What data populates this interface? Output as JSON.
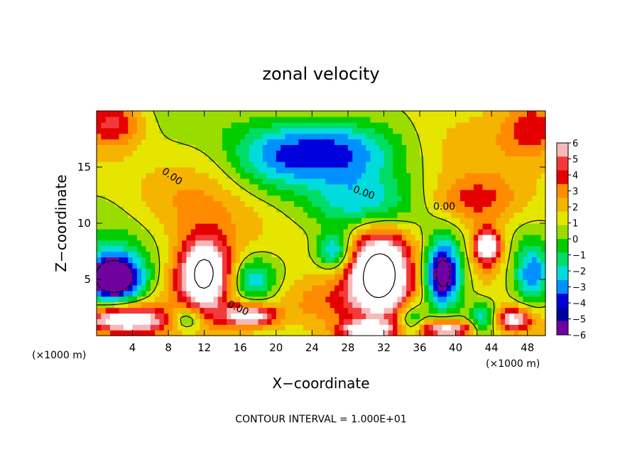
{
  "chart_data": {
    "type": "heatmap",
    "title": "zonal velocity",
    "xlabel": "X−coordinate",
    "ylabel": "Z−coordinate",
    "x_unit_left": "(×1000 m)",
    "x_unit_right": "(×1000 m)",
    "footer": "CONTOUR INTERVAL = 1.000E+01",
    "xlim": [
      0,
      50
    ],
    "ylim": [
      0,
      20
    ],
    "x_ticks": [
      4,
      8,
      12,
      16,
      20,
      24,
      28,
      32,
      36,
      40,
      44,
      48
    ],
    "x_tick_labels": [
      "4",
      "8",
      "12",
      "16",
      "20",
      "24",
      "28",
      "32",
      "36",
      "40",
      "44",
      "48"
    ],
    "y_ticks": [
      5,
      10,
      15
    ],
    "y_tick_labels": [
      "5",
      "10",
      "15"
    ],
    "colorbar": {
      "min": -6,
      "max": 6,
      "ticks": [
        6,
        5,
        4,
        3,
        2,
        1,
        0,
        -1,
        -2,
        -3,
        -4,
        -5,
        -6
      ],
      "tick_labels": [
        "6",
        "5",
        "4",
        "3",
        "2",
        "1",
        "0",
        "−1",
        "−2",
        "−3",
        "−4",
        "−5",
        "−6"
      ],
      "colors": [
        "#f6b9b9",
        "#f23a3a",
        "#e50000",
        "#ff8c00",
        "#f4b400",
        "#e5e500",
        "#9bdc00",
        "#00cc00",
        "#00dd66",
        "#00dcdc",
        "#0090ff",
        "#0000dd",
        "#0000a0",
        "#7000a0"
      ]
    },
    "contour_labels": [
      "0.00",
      "0.00",
      "0.00",
      "0.00"
    ],
    "blobs": [
      {
        "x": 26,
        "z": 16.5,
        "v": -5.2,
        "rx": 7.5,
        "rz": 3.0
      },
      {
        "x": 19,
        "z": 15.5,
        "v": -3.0,
        "rx": 5.0,
        "rz": 3.5
      },
      {
        "x": 30,
        "z": 11.5,
        "v": -3.5,
        "rx": 6.5,
        "rz": 2.5
      },
      {
        "x": 2,
        "z": 19,
        "v": 3.5,
        "rx": 3.0,
        "rz": 2.0
      },
      {
        "x": 49,
        "z": 18.5,
        "v": 3.5,
        "rx": 3.5,
        "rz": 2.5
      },
      {
        "x": 42,
        "z": 12,
        "v": 2.8,
        "rx": 5.0,
        "rz": 2.0
      },
      {
        "x": 8,
        "z": 12,
        "v": 1.2,
        "rx": 6.0,
        "rz": 3.0
      },
      {
        "x": 2,
        "z": 5,
        "v": -7.0,
        "rx": 3.0,
        "rz": 2.0
      },
      {
        "x": 2,
        "z": 5.5,
        "v": -3.5,
        "rx": 4.5,
        "rz": 3.0
      },
      {
        "x": 12,
        "z": 5.5,
        "v": 7.5,
        "rx": 2.5,
        "rz": 3.0
      },
      {
        "x": 12,
        "z": 5.5,
        "v": 2.5,
        "rx": 4.5,
        "rz": 4.0
      },
      {
        "x": 17.5,
        "z": 5,
        "v": -4.0,
        "rx": 2.5,
        "rz": 2.0
      },
      {
        "x": 26.5,
        "z": 7.5,
        "v": -5.0,
        "rx": 2.0,
        "rz": 1.8
      },
      {
        "x": 31.5,
        "z": 5.5,
        "v": 7.5,
        "rx": 3.0,
        "rz": 3.5
      },
      {
        "x": 31.5,
        "z": 5.5,
        "v": 2.5,
        "rx": 5.5,
        "rz": 5.0
      },
      {
        "x": 24,
        "z": 3,
        "v": 2.5,
        "rx": 6.0,
        "rz": 2.5
      },
      {
        "x": 38.5,
        "z": 5.5,
        "v": -7.0,
        "rx": 2.0,
        "rz": 3.0
      },
      {
        "x": 38.5,
        "z": 5.5,
        "v": -2.5,
        "rx": 3.5,
        "rz": 4.0
      },
      {
        "x": 43.5,
        "z": 8,
        "v": 7.0,
        "rx": 1.4,
        "rz": 1.5
      },
      {
        "x": 43.5,
        "z": 7,
        "v": 2.0,
        "rx": 3.0,
        "rz": 3.0
      },
      {
        "x": 48.5,
        "z": 5.5,
        "v": -4.5,
        "rx": 2.0,
        "rz": 2.5
      },
      {
        "x": 3,
        "z": 1.5,
        "v": 7.5,
        "rx": 4.5,
        "rz": 1.2
      },
      {
        "x": 17,
        "z": 1.8,
        "v": 7.0,
        "rx": 3.0,
        "rz": 1.0
      },
      {
        "x": 30,
        "z": 0.5,
        "v": 6.5,
        "rx": 3.0,
        "rz": 0.8
      },
      {
        "x": 39,
        "z": 0.6,
        "v": 7.0,
        "rx": 3.0,
        "rz": 0.8
      },
      {
        "x": 46.5,
        "z": 1.5,
        "v": 6.0,
        "rx": 2.0,
        "rz": 1.0
      },
      {
        "x": 10,
        "z": 1.5,
        "v": -4.0,
        "rx": 2.0,
        "rz": 1.2
      },
      {
        "x": 35,
        "z": 1.5,
        "v": -3.5,
        "rx": 1.5,
        "rz": 1.5
      },
      {
        "x": 43,
        "z": 1.5,
        "v": -4.0,
        "rx": 1.5,
        "rz": 1.5
      }
    ]
  }
}
